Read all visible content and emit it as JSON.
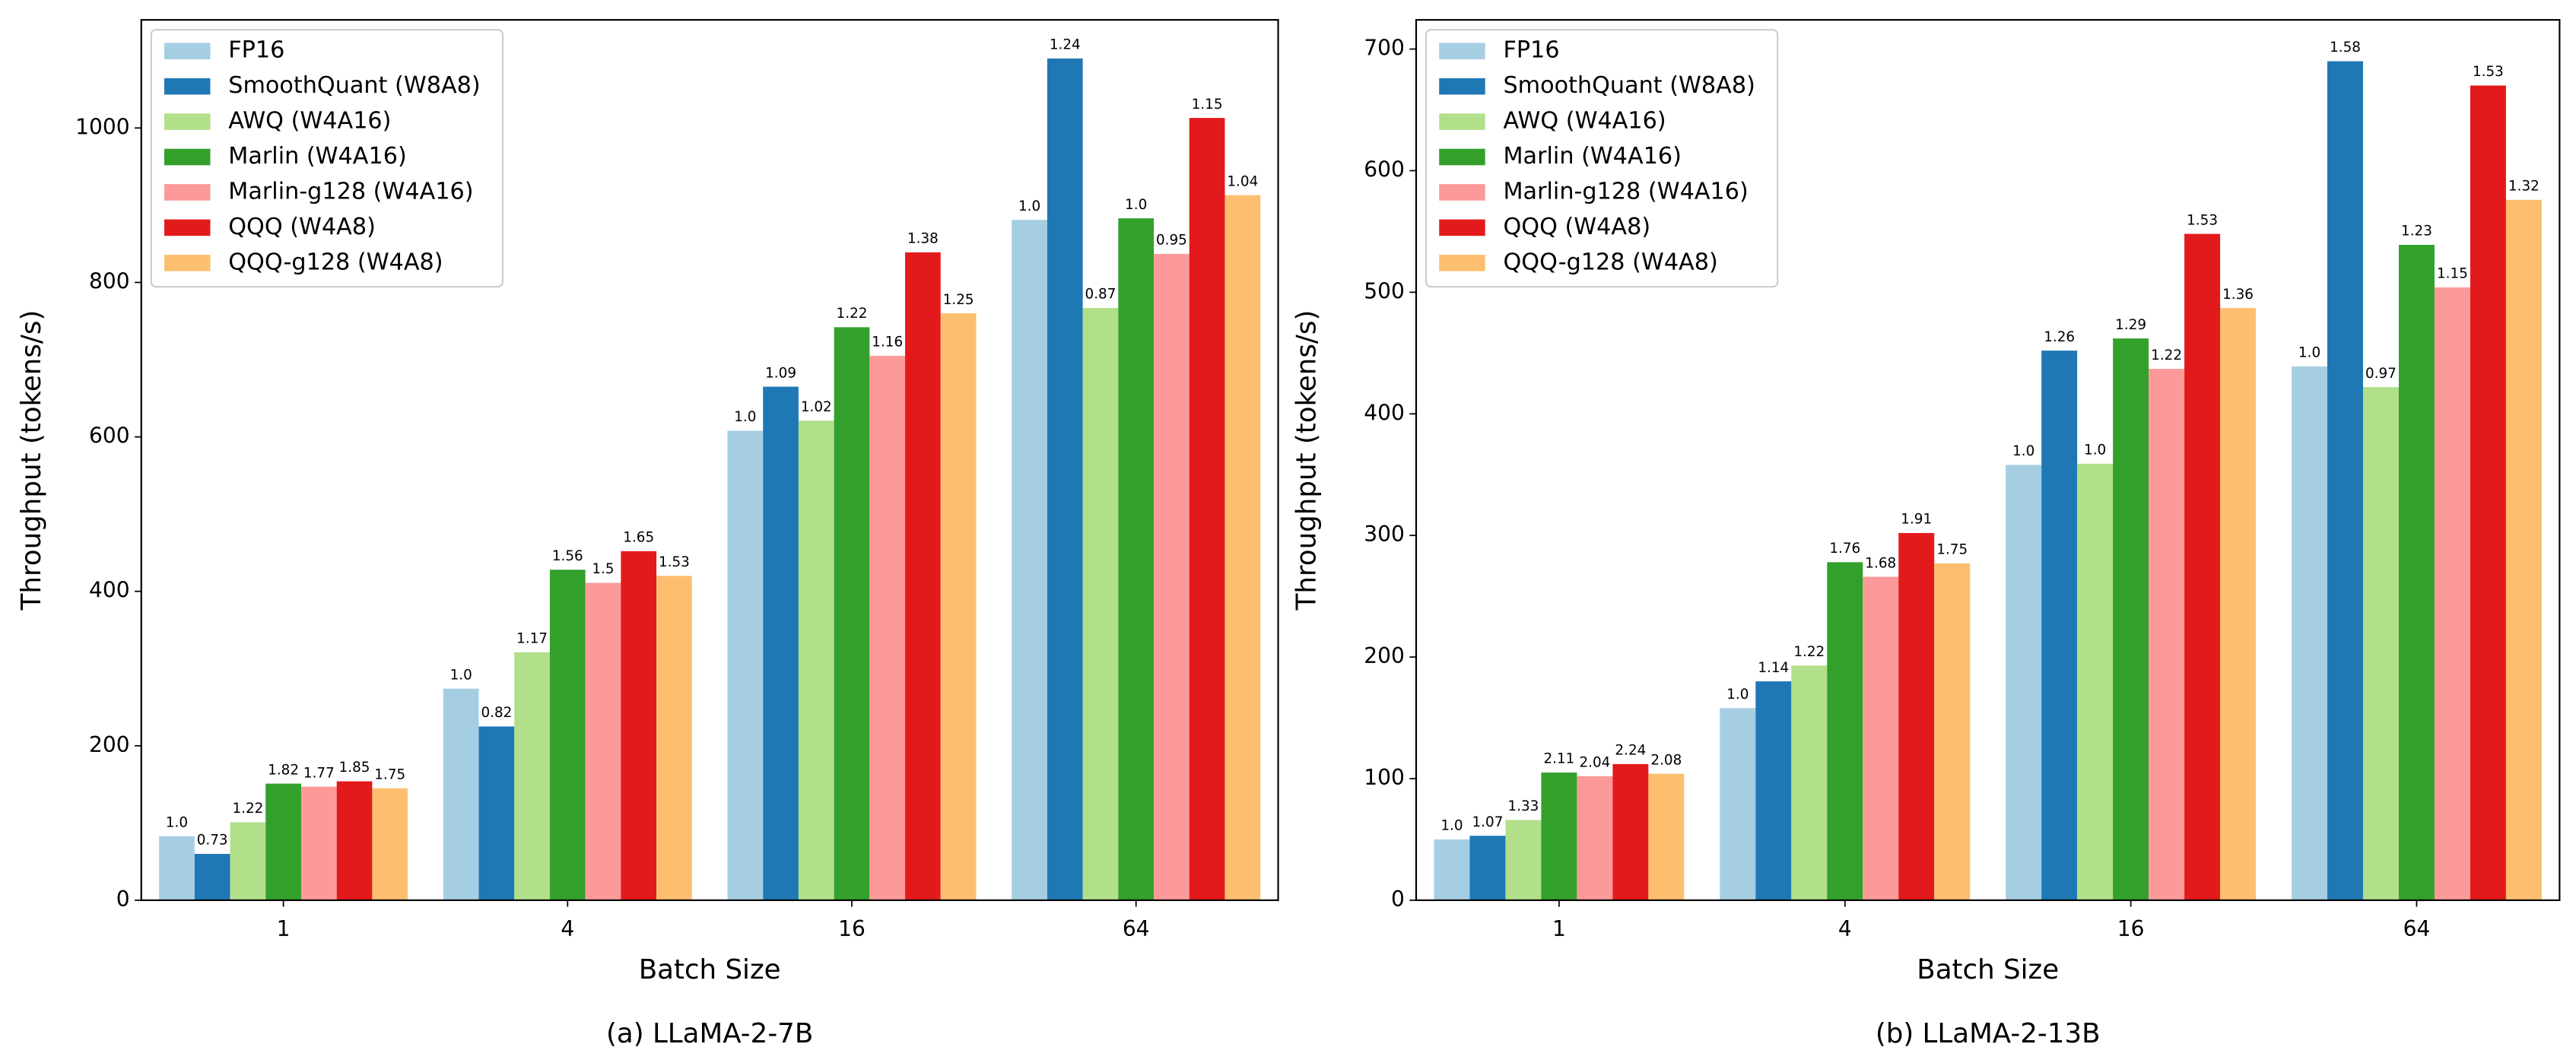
{
  "chart_data": [
    {
      "type": "bar",
      "title": "(a) LLaMA-2-7B",
      "xlabel": "Batch Size",
      "ylabel": "Throughput (tokens/s)",
      "categories": [
        "1",
        "4",
        "16",
        "64"
      ],
      "ylim": [
        0,
        1140
      ],
      "yticks": [
        0,
        200,
        400,
        600,
        800,
        1000
      ],
      "grid": false,
      "legend": "upper left",
      "series": [
        {
          "name": "FP16",
          "color": "#a6cee3",
          "values": [
            83,
            274,
            608,
            881
          ],
          "labels": [
            "1.0",
            "1.0",
            "1.0",
            "1.0"
          ]
        },
        {
          "name": "SmoothQuant (W8A8)",
          "color": "#1f78b4",
          "values": [
            60,
            225,
            665,
            1090
          ],
          "labels": [
            "0.73",
            "0.82",
            "1.09",
            "1.24"
          ]
        },
        {
          "name": "AWQ (W4A16)",
          "color": "#b2df8a",
          "values": [
            101,
            321,
            621,
            767
          ],
          "labels": [
            "1.22",
            "1.17",
            "1.02",
            "0.87"
          ]
        },
        {
          "name": "Marlin (W4A16)",
          "color": "#33a02c",
          "values": [
            151,
            428,
            742,
            883
          ],
          "labels": [
            "1.82",
            "1.56",
            "1.22",
            "1.0"
          ]
        },
        {
          "name": "Marlin-g128 (W4A16)",
          "color": "#fb9a99",
          "values": [
            147,
            411,
            705,
            837
          ],
          "labels": [
            "1.77",
            "1.5",
            "1.16",
            "0.95"
          ]
        },
        {
          "name": "QQQ (W4A8)",
          "color": "#e31a1c",
          "values": [
            154,
            452,
            839,
            1013
          ],
          "labels": [
            "1.85",
            "1.65",
            "1.38",
            "1.15"
          ]
        },
        {
          "name": "QQQ-g128 (W4A8)",
          "color": "#fdbf6f",
          "values": [
            145,
            420,
            760,
            913
          ],
          "labels": [
            "1.75",
            "1.53",
            "1.25",
            "1.04"
          ]
        }
      ]
    },
    {
      "type": "bar",
      "title": "(b) LLaMA-2-13B",
      "xlabel": "Batch Size",
      "ylabel": "Throughput (tokens/s)",
      "categories": [
        "1",
        "4",
        "16",
        "64"
      ],
      "ylim": [
        0,
        724
      ],
      "yticks": [
        0,
        100,
        200,
        300,
        400,
        500,
        600,
        700
      ],
      "grid": false,
      "legend": "upper left",
      "series": [
        {
          "name": "FP16",
          "color": "#a6cee3",
          "values": [
            50,
            158,
            358,
            439
          ],
          "labels": [
            "1.0",
            "1.0",
            "1.0",
            "1.0"
          ]
        },
        {
          "name": "SmoothQuant (W8A8)",
          "color": "#1f78b4",
          "values": [
            53,
            180,
            452,
            690
          ],
          "labels": [
            "1.07",
            "1.14",
            "1.26",
            "1.58"
          ]
        },
        {
          "name": "AWQ (W4A16)",
          "color": "#b2df8a",
          "values": [
            66,
            193,
            359,
            422
          ],
          "labels": [
            "1.33",
            "1.22",
            "1.0",
            "0.97"
          ]
        },
        {
          "name": "Marlin (W4A16)",
          "color": "#33a02c",
          "values": [
            105,
            278,
            462,
            539
          ],
          "labels": [
            "2.11",
            "1.76",
            "1.29",
            "1.23"
          ]
        },
        {
          "name": "Marlin-g128 (W4A16)",
          "color": "#fb9a99",
          "values": [
            102,
            266,
            437,
            504
          ],
          "labels": [
            "2.04",
            "1.68",
            "1.22",
            "1.15"
          ]
        },
        {
          "name": "QQQ (W4A8)",
          "color": "#e31a1c",
          "values": [
            112,
            302,
            548,
            670
          ],
          "labels": [
            "2.24",
            "1.91",
            "1.53",
            "1.53"
          ]
        },
        {
          "name": "QQQ-g128 (W4A8)",
          "color": "#fdbf6f",
          "values": [
            104,
            277,
            487,
            576
          ],
          "labels": [
            "2.08",
            "1.75",
            "1.36",
            "1.32"
          ]
        }
      ]
    }
  ]
}
